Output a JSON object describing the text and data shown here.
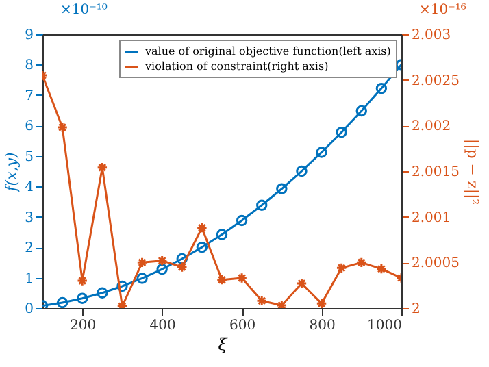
{
  "chart_data": {
    "type": "line",
    "xlabel": "ξ",
    "ylabel": "f(x,y)",
    "y2label": "||p − z||²",
    "x": [
      100,
      150,
      200,
      250,
      300,
      350,
      400,
      450,
      500,
      550,
      600,
      650,
      700,
      750,
      800,
      850,
      900,
      950,
      1000
    ],
    "series": [
      {
        "name": "value of original objective function(left axis)",
        "color": "#0072bd",
        "marker": "circle",
        "values": [
          0.08,
          0.18,
          0.32,
          0.5,
          0.72,
          0.98,
          1.28,
          1.62,
          2.0,
          2.42,
          2.88,
          3.38,
          3.92,
          4.5,
          5.12,
          5.78,
          6.48,
          7.22,
          8.0
        ]
      },
      {
        "name": "violation of constraint(right axis)",
        "color": "#d95319",
        "marker": "cross",
        "axis": "y2",
        "values": [
          2.00255,
          2.00198,
          2.0003,
          2.00154,
          2.00002,
          2.0005,
          2.00052,
          2.00045,
          2.00088,
          2.00031,
          2.00033,
          2.00008,
          2.00003,
          2.00027,
          2.00005,
          2.00044,
          2.0005,
          2.00043,
          2.00033
        ]
      }
    ],
    "xlim": [
      100,
      1000
    ],
    "xticks": [
      200,
      400,
      600,
      800,
      1000
    ],
    "ylim": [
      0,
      9
    ],
    "yticks": [
      0,
      1,
      2,
      3,
      4,
      5,
      6,
      7,
      8,
      9
    ],
    "y2lim": [
      2,
      2.003
    ],
    "y2ticks": [
      2,
      2.0005,
      2.001,
      2.0015,
      2.002,
      2.0025,
      2.003
    ],
    "annotations": [
      "×10⁻¹⁰",
      "×10⁻¹⁶"
    ],
    "legend": "top right",
    "line_style": "solid"
  }
}
